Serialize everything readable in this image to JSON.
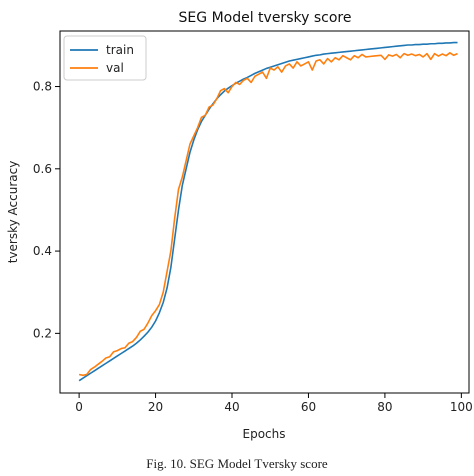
{
  "caption": "Fig. 10. SEG Model Tversky score",
  "chart_data": {
    "type": "line",
    "title": "SEG Model tversky score",
    "xlabel": "Epochs",
    "ylabel": "tversky Accuracy",
    "xlim": [
      -5,
      102
    ],
    "ylim": [
      0.055,
      0.935
    ],
    "xticks": [
      0,
      20,
      40,
      60,
      80,
      100
    ],
    "yticks": [
      0.2,
      0.4,
      0.6,
      0.8
    ],
    "xtick_labels": [
      "0",
      "20",
      "40",
      "60",
      "80",
      "100"
    ],
    "ytick_labels": [
      "0.2",
      "0.4",
      "0.6",
      "0.8"
    ],
    "grid": false,
    "legend": "top-left",
    "x": [
      0,
      1,
      2,
      3,
      4,
      5,
      6,
      7,
      8,
      9,
      10,
      11,
      12,
      13,
      14,
      15,
      16,
      17,
      18,
      19,
      20,
      21,
      22,
      23,
      24,
      25,
      26,
      27,
      28,
      29,
      30,
      31,
      32,
      33,
      34,
      35,
      36,
      37,
      38,
      39,
      40,
      41,
      42,
      43,
      44,
      45,
      46,
      47,
      48,
      49,
      50,
      51,
      52,
      53,
      54,
      55,
      56,
      57,
      58,
      59,
      60,
      61,
      62,
      63,
      64,
      65,
      66,
      67,
      68,
      69,
      70,
      71,
      72,
      73,
      74,
      75,
      76,
      77,
      78,
      79,
      80,
      81,
      82,
      83,
      84,
      85,
      86,
      87,
      88,
      89,
      90,
      91,
      92,
      93,
      94,
      95,
      96,
      97,
      98,
      99
    ],
    "series": [
      {
        "name": "train",
        "color": "#1f77b4",
        "values": [
          0.085,
          0.091,
          0.097,
          0.103,
          0.109,
          0.115,
          0.121,
          0.127,
          0.133,
          0.139,
          0.145,
          0.151,
          0.157,
          0.163,
          0.169,
          0.176,
          0.184,
          0.193,
          0.203,
          0.215,
          0.23,
          0.25,
          0.275,
          0.31,
          0.36,
          0.43,
          0.5,
          0.56,
          0.6,
          0.64,
          0.67,
          0.695,
          0.715,
          0.73,
          0.745,
          0.758,
          0.77,
          0.78,
          0.789,
          0.796,
          0.802,
          0.808,
          0.813,
          0.818,
          0.822,
          0.827,
          0.832,
          0.836,
          0.84,
          0.844,
          0.847,
          0.85,
          0.853,
          0.856,
          0.859,
          0.862,
          0.864,
          0.866,
          0.868,
          0.87,
          0.872,
          0.874,
          0.876,
          0.877,
          0.879,
          0.88,
          0.881,
          0.882,
          0.883,
          0.884,
          0.885,
          0.886,
          0.887,
          0.888,
          0.889,
          0.89,
          0.891,
          0.892,
          0.893,
          0.894,
          0.895,
          0.896,
          0.897,
          0.898,
          0.899,
          0.9,
          0.901,
          0.901,
          0.902,
          0.902,
          0.903,
          0.903,
          0.904,
          0.904,
          0.905,
          0.905,
          0.906,
          0.906,
          0.907,
          0.907
        ]
      },
      {
        "name": "val",
        "color": "#ff7f0e",
        "values": [
          0.1,
          0.098,
          0.1,
          0.112,
          0.118,
          0.125,
          0.132,
          0.14,
          0.143,
          0.155,
          0.158,
          0.163,
          0.165,
          0.176,
          0.18,
          0.19,
          0.205,
          0.21,
          0.225,
          0.243,
          0.255,
          0.27,
          0.3,
          0.35,
          0.4,
          0.48,
          0.55,
          0.58,
          0.62,
          0.66,
          0.68,
          0.7,
          0.725,
          0.73,
          0.75,
          0.755,
          0.77,
          0.79,
          0.795,
          0.785,
          0.8,
          0.81,
          0.805,
          0.815,
          0.82,
          0.81,
          0.825,
          0.83,
          0.835,
          0.82,
          0.845,
          0.84,
          0.848,
          0.835,
          0.85,
          0.855,
          0.845,
          0.86,
          0.85,
          0.855,
          0.86,
          0.84,
          0.862,
          0.865,
          0.855,
          0.868,
          0.86,
          0.87,
          0.865,
          0.875,
          0.87,
          0.865,
          0.875,
          0.87,
          0.878,
          0.872,
          0.873,
          0.874,
          0.875,
          0.876,
          0.866,
          0.877,
          0.874,
          0.878,
          0.87,
          0.88,
          0.876,
          0.879,
          0.875,
          0.878,
          0.872,
          0.88,
          0.866,
          0.88,
          0.874,
          0.879,
          0.875,
          0.882,
          0.876,
          0.88
        ]
      }
    ]
  }
}
